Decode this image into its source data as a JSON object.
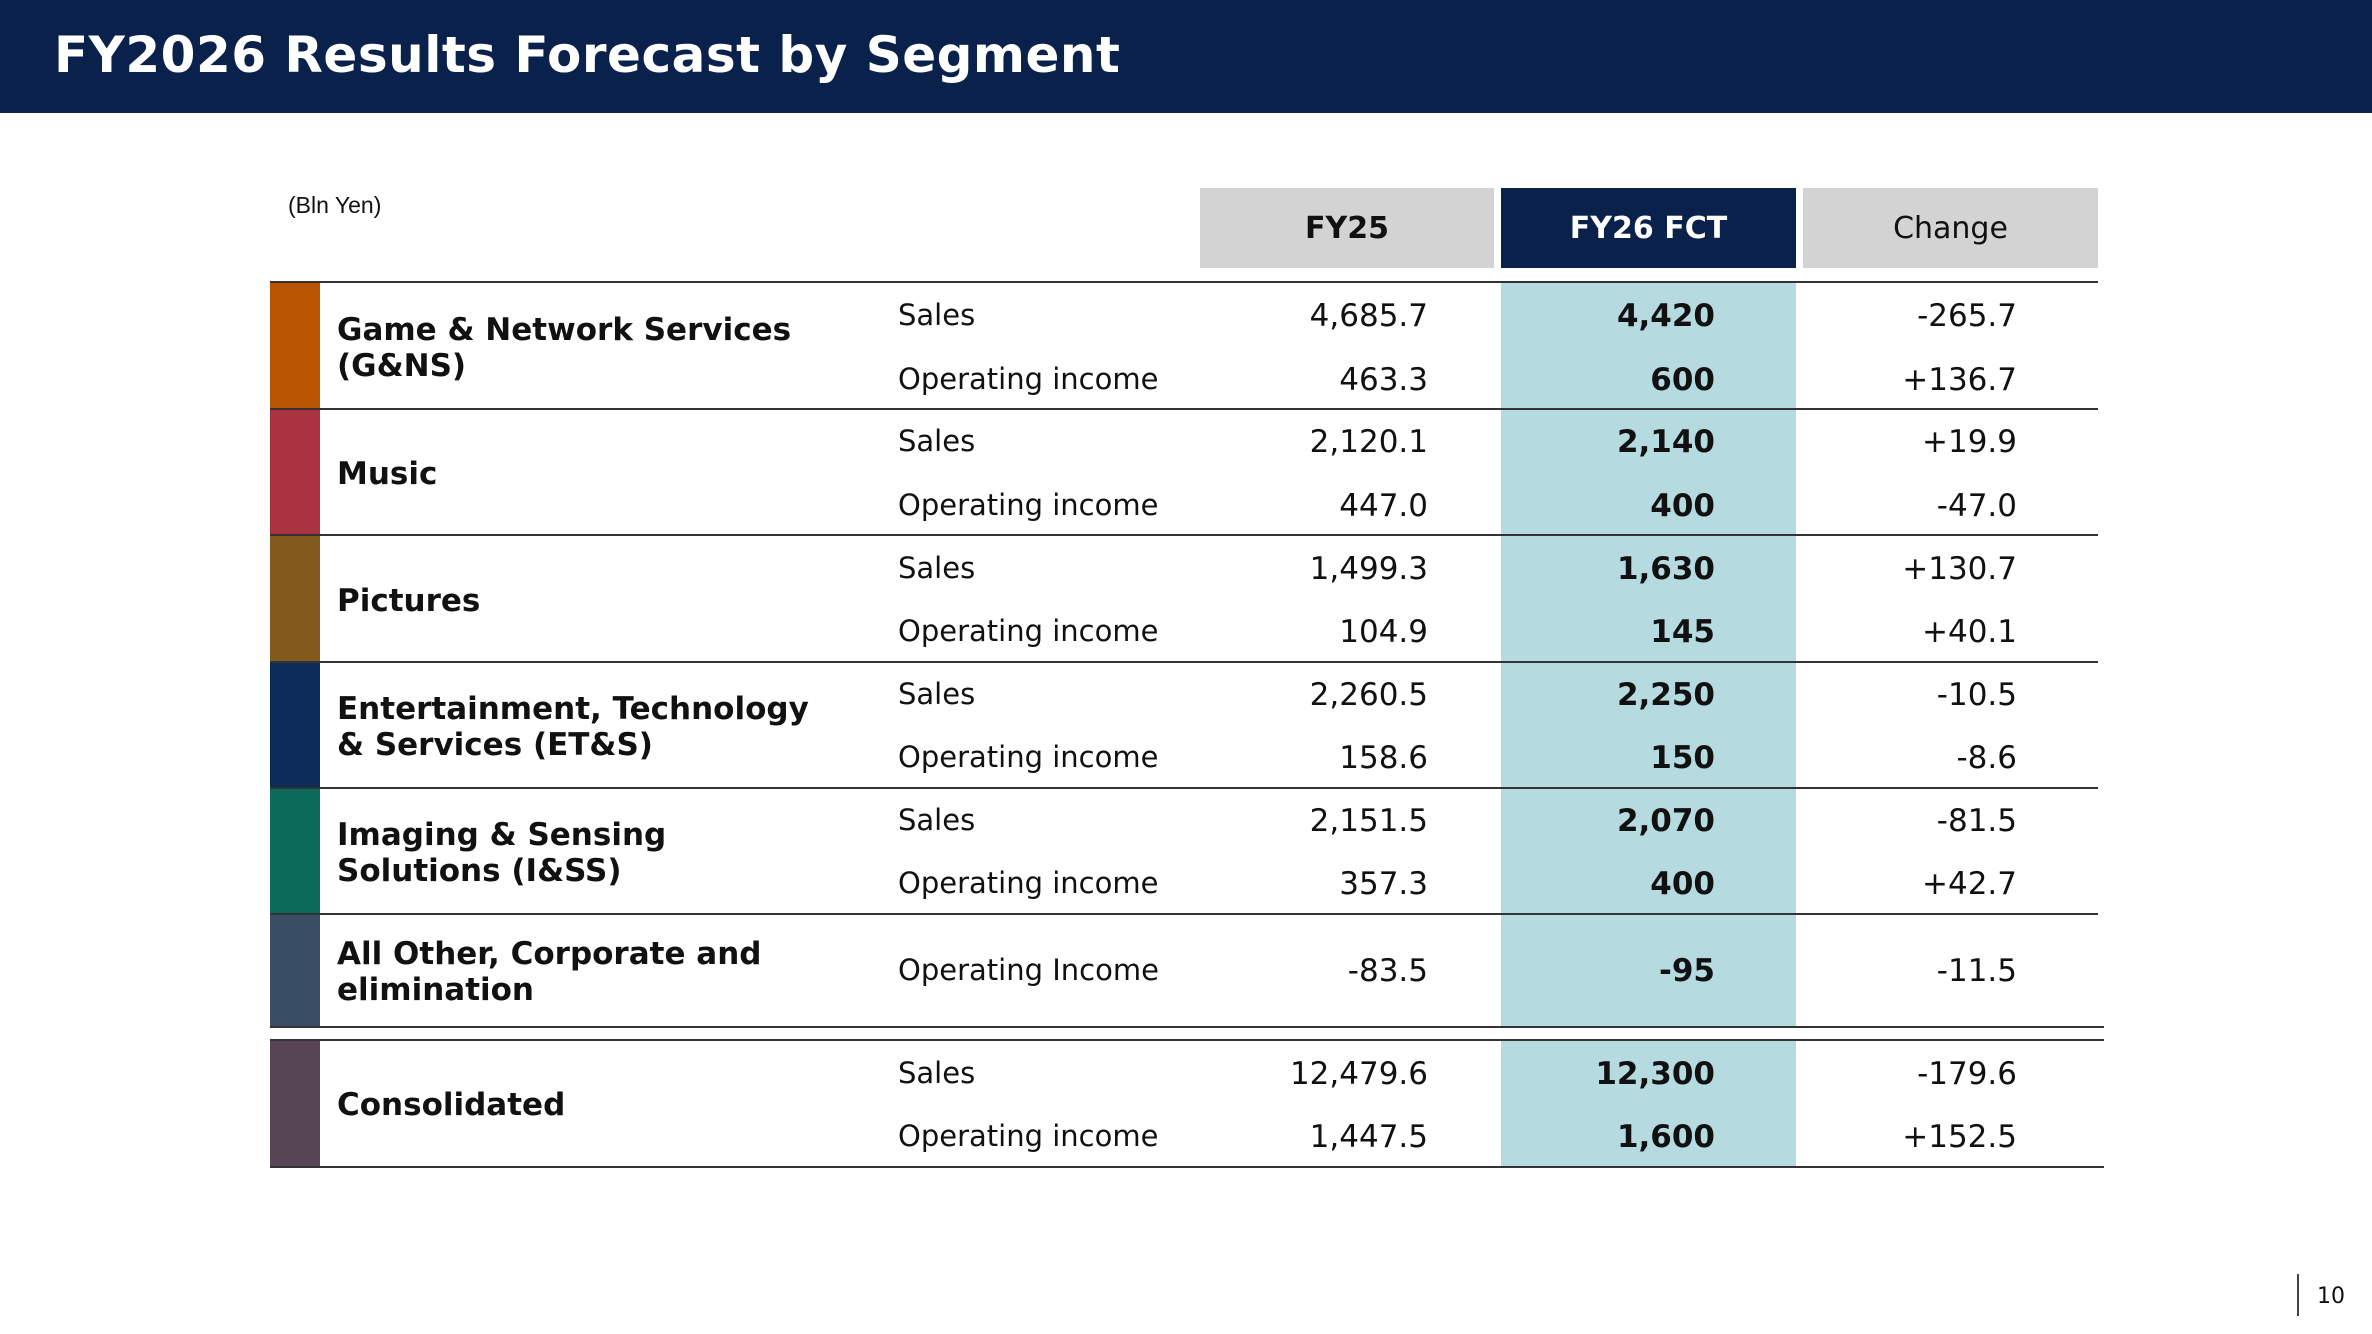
{
  "title": "FY2026 Results Forecast by Segment",
  "unit": "(Bln Yen)",
  "columns": [
    "FY25",
    "FY26 FCT",
    "Change"
  ],
  "colors": {
    "header_bg": "#0a224b",
    "highlight": "#b5dbe1",
    "col_header_gray": "#d3d3d3"
  },
  "segments": [
    {
      "name": "Game & Network Services (G&NS)",
      "color": "#b85400",
      "rows": [
        {
          "metric": "Sales",
          "fy25": "4,685.7",
          "fy26": "4,420",
          "change": "-265.7"
        },
        {
          "metric": "Operating income",
          "fy25": "463.3",
          "fy26": "600",
          "change": "+136.7"
        }
      ]
    },
    {
      "name": "Music",
      "color": "#a8333f",
      "rows": [
        {
          "metric": "Sales",
          "fy25": "2,120.1",
          "fy26": "2,140",
          "change": "+19.9"
        },
        {
          "metric": "Operating income",
          "fy25": "447.0",
          "fy26": "400",
          "change": "-47.0"
        }
      ]
    },
    {
      "name": "Pictures",
      "color": "#825a1e",
      "rows": [
        {
          "metric": "Sales",
          "fy25": "1,499.3",
          "fy26": "1,630",
          "change": "+130.7"
        },
        {
          "metric": "Operating income",
          "fy25": "104.9",
          "fy26": "145",
          "change": "+40.1"
        }
      ]
    },
    {
      "name": "Entertainment, Technology & Services (ET&S)",
      "color": "#0c2d5b",
      "rows": [
        {
          "metric": "Sales",
          "fy25": "2,260.5",
          "fy26": "2,250",
          "change": "-10.5"
        },
        {
          "metric": "Operating income",
          "fy25": "158.6",
          "fy26": "150",
          "change": "-8.6"
        }
      ]
    },
    {
      "name": "Imaging & Sensing Solutions (I&SS)",
      "color": "#0c6a5a",
      "rows": [
        {
          "metric": "Sales",
          "fy25": "2,151.5",
          "fy26": "2,070",
          "change": "-81.5"
        },
        {
          "metric": "Operating income",
          "fy25": "357.3",
          "fy26": "400",
          "change": "+42.7"
        }
      ]
    },
    {
      "name": "All Other, Corporate and elimination",
      "color": "#3a4e66",
      "rows": [
        {
          "metric": "Operating Income",
          "fy25": "-83.5",
          "fy26": "-95",
          "change": "-11.5"
        }
      ]
    },
    {
      "name": "Consolidated",
      "color": "#574556",
      "rows": [
        {
          "metric": "Sales",
          "fy25": "12,479.6",
          "fy26": "12,300",
          "change": "-179.6"
        },
        {
          "metric": "Operating income",
          "fy25": "1,447.5",
          "fy26": "1,600",
          "change": "+152.5"
        }
      ]
    }
  ],
  "page_number": "10"
}
